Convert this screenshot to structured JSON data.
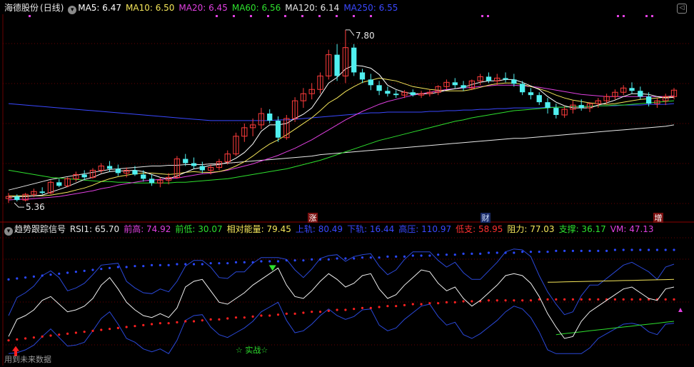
{
  "main_panel": {
    "stock_name": "海德股份",
    "period": "(日线)",
    "ma": [
      {
        "label": "MA5:",
        "value": "6.47",
        "color": "#ffffff"
      },
      {
        "label": "MA10:",
        "value": "6.50",
        "color": "#f5e65a"
      },
      {
        "label": "MA20:",
        "value": "6.45",
        "color": "#e040e0"
      },
      {
        "label": "MA60:",
        "value": "6.56",
        "color": "#2ee02e"
      },
      {
        "label": "MA120:",
        "value": "6.14",
        "color": "#e8e8e8"
      },
      {
        "label": "MA250:",
        "value": "6.55",
        "color": "#3a48ff"
      }
    ],
    "high_label": "7.80",
    "low_label": "5.36",
    "event_markers": [
      "涨",
      "财",
      "增"
    ],
    "close_icon": "chevron-left-icon"
  },
  "sub_panel": {
    "title": "趋势跟踪信号",
    "indicators": [
      {
        "label": "RSI1:",
        "value": "65.70",
        "color": "#e8e8e8"
      },
      {
        "label": "前高:",
        "value": "74.92",
        "color": "#e040e0"
      },
      {
        "label": "前低:",
        "value": "30.07",
        "color": "#2ee02e"
      },
      {
        "label": "相对能量:",
        "value": "79.45",
        "color": "#f5e65a"
      },
      {
        "label": "上轨:",
        "value": "80.49",
        "color": "#3a48ff"
      },
      {
        "label": "下轨:",
        "value": "16.44",
        "color": "#3a48ff"
      },
      {
        "label": "高压:",
        "value": "110.97",
        "color": "#3a48ff"
      },
      {
        "label": "低支:",
        "value": "58.95",
        "color": "#ff3030"
      },
      {
        "label": "阻力:",
        "value": "77.03",
        "color": "#f5e65a"
      },
      {
        "label": "支撑:",
        "value": "36.17",
        "color": "#2ee02e"
      },
      {
        "label": "VM:",
        "value": "47.13",
        "color": "#e040e0"
      }
    ],
    "signal_text": "☆ 实战☆"
  },
  "footer_text": "用到未来数据",
  "colors": {
    "up": "#ff3c3c",
    "down": "#50f0f0",
    "grid": "#6a0000",
    "bg": "#000000"
  },
  "chart_data": [
    {
      "type": "candlestick",
      "ylim": [
        5.2,
        8.0
      ],
      "ohlc": [
        [
          5.42,
          5.5,
          5.36,
          5.45
        ],
        [
          5.45,
          5.48,
          5.38,
          5.4
        ],
        [
          5.4,
          5.5,
          5.38,
          5.48
        ],
        [
          5.48,
          5.56,
          5.44,
          5.52
        ],
        [
          5.52,
          5.58,
          5.48,
          5.5
        ],
        [
          5.5,
          5.68,
          5.48,
          5.65
        ],
        [
          5.65,
          5.7,
          5.58,
          5.6
        ],
        [
          5.6,
          5.72,
          5.58,
          5.7
        ],
        [
          5.7,
          5.8,
          5.66,
          5.76
        ],
        [
          5.76,
          5.82,
          5.68,
          5.72
        ],
        [
          5.72,
          5.85,
          5.7,
          5.82
        ],
        [
          5.82,
          5.92,
          5.78,
          5.88
        ],
        [
          5.88,
          5.95,
          5.8,
          5.84
        ],
        [
          5.84,
          5.9,
          5.74,
          5.78
        ],
        [
          5.78,
          5.86,
          5.72,
          5.82
        ],
        [
          5.82,
          5.88,
          5.74,
          5.76
        ],
        [
          5.76,
          5.82,
          5.66,
          5.7
        ],
        [
          5.7,
          5.76,
          5.6,
          5.64
        ],
        [
          5.64,
          5.72,
          5.58,
          5.68
        ],
        [
          5.68,
          5.78,
          5.62,
          5.72
        ],
        [
          5.72,
          6.02,
          5.7,
          5.98
        ],
        [
          5.98,
          6.05,
          5.88,
          5.92
        ],
        [
          5.92,
          6.0,
          5.84,
          5.88
        ],
        [
          5.88,
          5.94,
          5.78,
          5.82
        ],
        [
          5.82,
          5.9,
          5.76,
          5.86
        ],
        [
          5.86,
          5.98,
          5.82,
          5.94
        ],
        [
          5.94,
          6.1,
          5.9,
          6.05
        ],
        [
          6.05,
          6.35,
          6.02,
          6.3
        ],
        [
          6.3,
          6.48,
          6.22,
          6.42
        ],
        [
          6.42,
          6.55,
          6.3,
          6.46
        ],
        [
          6.46,
          6.7,
          6.4,
          6.62
        ],
        [
          6.62,
          6.68,
          6.48,
          6.52
        ],
        [
          6.52,
          6.58,
          6.22,
          6.28
        ],
        [
          6.28,
          6.6,
          6.25,
          6.55
        ],
        [
          6.55,
          6.85,
          6.5,
          6.8
        ],
        [
          6.8,
          6.98,
          6.7,
          6.9
        ],
        [
          6.9,
          7.05,
          6.82,
          6.96
        ],
        [
          6.96,
          7.2,
          6.9,
          7.15
        ],
        [
          7.15,
          7.52,
          7.1,
          7.45
        ],
        [
          7.45,
          7.6,
          7.08,
          7.15
        ],
        [
          7.15,
          7.8,
          7.05,
          7.55
        ],
        [
          7.55,
          7.6,
          7.15,
          7.2
        ],
        [
          7.2,
          7.25,
          7.05,
          7.1
        ],
        [
          7.1,
          7.18,
          6.95,
          7.02
        ],
        [
          7.02,
          7.08,
          6.88,
          6.94
        ],
        [
          6.94,
          7.0,
          6.86,
          6.9
        ],
        [
          6.9,
          6.95,
          6.84,
          6.88
        ],
        [
          6.88,
          6.95,
          6.84,
          6.92
        ],
        [
          6.92,
          6.96,
          6.86,
          6.88
        ],
        [
          6.88,
          6.94,
          6.84,
          6.9
        ],
        [
          6.9,
          6.96,
          6.86,
          6.92
        ],
        [
          6.92,
          7.02,
          6.88,
          7.0
        ],
        [
          7.0,
          7.1,
          6.96,
          7.06
        ],
        [
          7.06,
          7.12,
          6.98,
          7.02
        ],
        [
          7.02,
          7.08,
          6.94,
          6.98
        ],
        [
          6.98,
          7.1,
          6.95,
          7.08
        ],
        [
          7.08,
          7.18,
          7.02,
          7.14
        ],
        [
          7.14,
          7.2,
          7.05,
          7.08
        ],
        [
          7.08,
          7.18,
          7.02,
          7.12
        ],
        [
          7.12,
          7.2,
          7.06,
          7.1
        ],
        [
          7.1,
          7.18,
          7.0,
          7.04
        ],
        [
          7.04,
          7.08,
          6.88,
          6.92
        ],
        [
          6.92,
          6.98,
          6.82,
          6.88
        ],
        [
          6.88,
          6.92,
          6.74,
          6.78
        ],
        [
          6.78,
          6.84,
          6.62,
          6.7
        ],
        [
          6.7,
          6.76,
          6.55,
          6.6
        ],
        [
          6.6,
          6.72,
          6.56,
          6.68
        ],
        [
          6.68,
          6.8,
          6.62,
          6.74
        ],
        [
          6.74,
          6.82,
          6.66,
          6.7
        ],
        [
          6.7,
          6.78,
          6.64,
          6.76
        ],
        [
          6.76,
          6.84,
          6.7,
          6.8
        ],
        [
          6.8,
          6.9,
          6.76,
          6.86
        ],
        [
          6.86,
          6.96,
          6.82,
          6.92
        ],
        [
          6.92,
          7.02,
          6.88,
          6.98
        ],
        [
          6.98,
          7.06,
          6.9,
          6.94
        ],
        [
          6.94,
          7.0,
          6.82,
          6.86
        ],
        [
          6.86,
          6.92,
          6.72,
          6.76
        ],
        [
          6.76,
          6.84,
          6.7,
          6.8
        ],
        [
          6.8,
          6.9,
          6.74,
          6.86
        ],
        [
          6.86,
          6.98,
          6.82,
          6.95
        ]
      ],
      "ma5": [
        5.44,
        5.45,
        5.45,
        5.46,
        5.47,
        5.51,
        5.55,
        5.59,
        5.64,
        5.69,
        5.72,
        5.77,
        5.8,
        5.81,
        5.81,
        5.82,
        5.8,
        5.76,
        5.72,
        5.7,
        5.74,
        5.79,
        5.84,
        5.86,
        5.89,
        5.9,
        5.93,
        5.99,
        6.07,
        6.19,
        6.37,
        6.46,
        6.46,
        6.48,
        6.55,
        6.61,
        6.7,
        6.87,
        7.05,
        7.13,
        7.25,
        7.3,
        7.29,
        7.26,
        7.17,
        7.02,
        6.96,
        6.92,
        6.9,
        6.9,
        6.9,
        6.92,
        6.95,
        6.97,
        6.99,
        7.03,
        7.06,
        7.08,
        7.08,
        7.1,
        7.1,
        7.06,
        7.01,
        6.96,
        6.86,
        6.78,
        6.73,
        6.7,
        6.7,
        6.7,
        6.74,
        6.77,
        6.81,
        6.86,
        6.9,
        6.9,
        6.89,
        6.86,
        6.84,
        6.85
      ],
      "ma10": [
        5.46,
        5.46,
        5.46,
        5.46,
        5.46,
        5.47,
        5.49,
        5.51,
        5.54,
        5.57,
        5.61,
        5.66,
        5.7,
        5.73,
        5.75,
        5.77,
        5.78,
        5.78,
        5.77,
        5.76,
        5.77,
        5.79,
        5.8,
        5.79,
        5.79,
        5.8,
        5.83,
        5.88,
        5.94,
        6.02,
        6.11,
        6.19,
        6.25,
        6.32,
        6.4,
        6.48,
        6.56,
        6.66,
        6.77,
        6.84,
        6.93,
        7.0,
        7.06,
        7.09,
        7.12,
        7.1,
        7.08,
        7.04,
        7.0,
        6.98,
        6.96,
        6.95,
        6.94,
        6.94,
        6.94,
        6.96,
        6.99,
        7.02,
        7.04,
        7.05,
        7.05,
        7.03,
        7.0,
        6.97,
        6.93,
        6.88,
        6.84,
        6.81,
        6.79,
        6.77,
        6.76,
        6.75,
        6.76,
        6.78,
        6.8,
        6.82,
        6.83,
        6.84,
        6.85,
        6.86
      ],
      "ma20": [
        5.4,
        5.41,
        5.41,
        5.42,
        5.43,
        5.44,
        5.45,
        5.47,
        5.49,
        5.51,
        5.53,
        5.56,
        5.58,
        5.61,
        5.63,
        5.65,
        5.67,
        5.68,
        5.69,
        5.7,
        5.71,
        5.73,
        5.75,
        5.77,
        5.78,
        5.8,
        5.82,
        5.85,
        5.88,
        5.91,
        5.95,
        5.99,
        6.03,
        6.08,
        6.13,
        6.19,
        6.25,
        6.32,
        6.39,
        6.46,
        6.53,
        6.59,
        6.65,
        6.7,
        6.75,
        6.79,
        6.82,
        6.85,
        6.88,
        6.9,
        6.92,
        6.94,
        6.96,
        6.97,
        6.98,
        6.99,
        7.0,
        7.01,
        7.02,
        7.02,
        7.02,
        7.01,
        7.0,
        6.99,
        6.97,
        6.95,
        6.93,
        6.91,
        6.89,
        6.88,
        6.87,
        6.86,
        6.86,
        6.86,
        6.86,
        6.86,
        6.86,
        6.86,
        6.86,
        6.87
      ],
      "ma60": [
        5.82,
        5.8,
        5.78,
        5.76,
        5.74,
        5.72,
        5.71,
        5.7,
        5.69,
        5.68,
        5.67,
        5.66,
        5.66,
        5.65,
        5.65,
        5.64,
        5.64,
        5.64,
        5.64,
        5.64,
        5.65,
        5.65,
        5.66,
        5.67,
        5.68,
        5.69,
        5.7,
        5.72,
        5.74,
        5.76,
        5.78,
        5.8,
        5.82,
        5.84,
        5.87,
        5.9,
        5.93,
        5.96,
        6.0,
        6.04,
        6.08,
        6.12,
        6.16,
        6.2,
        6.24,
        6.27,
        6.3,
        6.33,
        6.36,
        6.39,
        6.42,
        6.45,
        6.48,
        6.51,
        6.53,
        6.56,
        6.58,
        6.6,
        6.62,
        6.64,
        6.66,
        6.67,
        6.68,
        6.69,
        6.7,
        6.71,
        6.71,
        6.72,
        6.72,
        6.72,
        6.73,
        6.73,
        6.74,
        6.74,
        6.75,
        6.76,
        6.77,
        6.78,
        6.79,
        6.8
      ],
      "ma120": [
        5.54,
        5.57,
        5.6,
        5.63,
        5.66,
        5.69,
        5.71,
        5.73,
        5.75,
        5.77,
        5.79,
        5.81,
        5.83,
        5.84,
        5.85,
        5.86,
        5.87,
        5.88,
        5.88,
        5.89,
        5.89,
        5.9,
        5.9,
        5.9,
        5.91,
        5.91,
        5.92,
        5.93,
        5.94,
        5.95,
        5.96,
        5.97,
        5.98,
        5.99,
        6.0,
        6.01,
        6.02,
        6.04,
        6.05,
        6.06,
        6.07,
        6.08,
        6.09,
        6.1,
        6.11,
        6.12,
        6.13,
        6.14,
        6.15,
        6.16,
        6.17,
        6.18,
        6.19,
        6.2,
        6.21,
        6.22,
        6.23,
        6.24,
        6.25,
        6.26,
        6.27,
        6.27,
        6.28,
        6.29,
        6.3,
        6.31,
        6.32,
        6.33,
        6.34,
        6.35,
        6.36,
        6.37,
        6.38,
        6.39,
        6.4,
        6.41,
        6.42,
        6.43,
        6.44,
        6.46
      ],
      "ma250": [
        6.76,
        6.75,
        6.74,
        6.73,
        6.72,
        6.71,
        6.7,
        6.69,
        6.68,
        6.67,
        6.66,
        6.65,
        6.64,
        6.63,
        6.62,
        6.61,
        6.6,
        6.59,
        6.58,
        6.57,
        6.56,
        6.55,
        6.54,
        6.53,
        6.52,
        6.52,
        6.52,
        6.52,
        6.52,
        6.52,
        6.52,
        6.52,
        6.53,
        6.53,
        6.54,
        6.55,
        6.56,
        6.57,
        6.58,
        6.59,
        6.6,
        6.61,
        6.62,
        6.63,
        6.63,
        6.64,
        6.64,
        6.64,
        6.64,
        6.64,
        6.65,
        6.65,
        6.66,
        6.66,
        6.67,
        6.67,
        6.68,
        6.68,
        6.69,
        6.69,
        6.7,
        6.7,
        6.7,
        6.7,
        6.71,
        6.71,
        6.71,
        6.72,
        6.72,
        6.72,
        6.73,
        6.73,
        6.73,
        6.74,
        6.74,
        6.74,
        6.75,
        6.75,
        6.75,
        6.76
      ]
    },
    {
      "type": "line",
      "ylim": [
        0,
        120
      ],
      "rsi": [
        20,
        38,
        42,
        48,
        58,
        62,
        54,
        46,
        48,
        52,
        60,
        74,
        82,
        70,
        56,
        48,
        42,
        40,
        44,
        40,
        50,
        72,
        78,
        80,
        68,
        56,
        54,
        60,
        66,
        74,
        80,
        86,
        92,
        74,
        62,
        60,
        68,
        78,
        86,
        80,
        72,
        76,
        84,
        86,
        70,
        60,
        64,
        74,
        82,
        90,
        88,
        76,
        68,
        72,
        60,
        52,
        58,
        66,
        74,
        84,
        86,
        84,
        76,
        62,
        44,
        30,
        18,
        20,
        36,
        46,
        52,
        58,
        64,
        70,
        72,
        66,
        60,
        58,
        70,
        72
      ],
      "upper_band": [
        80,
        81,
        82,
        83,
        84,
        85,
        86,
        87,
        88,
        89,
        90,
        91,
        92,
        93,
        93,
        94,
        94,
        95,
        95,
        95,
        96,
        96,
        96,
        96,
        97,
        97,
        97,
        98,
        98,
        98,
        99,
        99,
        99,
        100,
        100,
        100,
        101,
        101,
        101,
        102,
        102,
        102,
        103,
        103,
        103,
        104,
        104,
        104,
        105,
        105,
        105,
        106,
        106,
        106,
        107,
        107,
        107,
        108,
        108,
        108,
        108,
        109,
        109,
        109,
        109,
        110,
        110,
        110,
        110,
        110,
        110,
        110,
        111,
        111,
        111,
        111,
        111,
        111,
        111,
        111
      ],
      "lower_band": [
        16,
        17,
        18,
        19,
        20,
        21,
        22,
        23,
        24,
        25,
        26,
        27,
        28,
        29,
        30,
        31,
        32,
        33,
        34,
        34,
        35,
        36,
        36,
        37,
        38,
        38,
        39,
        40,
        40,
        41,
        42,
        42,
        43,
        44,
        44,
        45,
        46,
        46,
        47,
        48,
        48,
        49,
        50,
        50,
        51,
        52,
        52,
        53,
        54,
        54,
        55,
        55,
        56,
        56,
        57,
        57,
        57,
        58,
        58,
        58,
        58,
        58,
        58,
        59,
        59,
        59,
        59,
        59,
        59,
        59,
        59,
        59,
        59,
        59,
        59,
        59,
        59,
        59,
        59,
        59
      ],
      "resistance": [
        77,
        77,
        77,
        77,
        77,
        77,
        77,
        77,
        77,
        77,
        77,
        77,
        77,
        77,
        77,
        77
      ],
      "support": [
        22,
        23,
        24,
        25,
        26,
        27,
        28,
        29,
        30,
        31,
        32,
        33,
        34,
        35,
        36
      ]
    }
  ]
}
